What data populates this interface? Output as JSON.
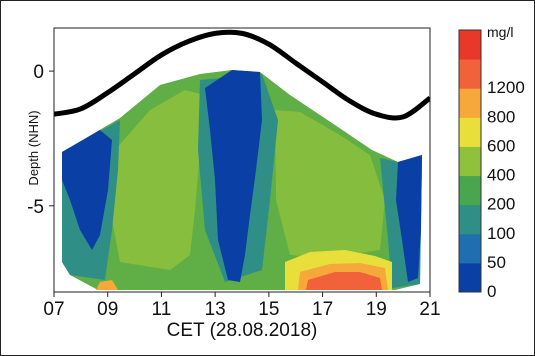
{
  "chart_data": {
    "type": "heatmap",
    "xlabel": "CET (28.08.2018)",
    "ylabel": "Depth (NHN)",
    "x_ticks": [
      "07",
      "09",
      "11",
      "13",
      "15",
      "17",
      "19",
      "21"
    ],
    "x_range": [
      7,
      21
    ],
    "y_ticks": [
      "0",
      "-5"
    ],
    "y_range": [
      -8.2,
      1.6
    ],
    "colorbar": {
      "unit": "mg/l",
      "levels": [
        "0",
        "50",
        "100",
        "200",
        "400",
        "600",
        "800",
        "1200"
      ],
      "colors": [
        "#0a3fa6",
        "#1f6fb0",
        "#2f8f86",
        "#4aa64e",
        "#8fc13c",
        "#e9df3a",
        "#f6a83a",
        "#f2623a",
        "#e8382a"
      ]
    },
    "water_level": {
      "x": [
        7,
        8,
        9,
        10,
        11,
        12,
        13,
        14,
        15,
        16,
        17,
        18,
        19,
        20,
        21
      ],
      "y": [
        -1.6,
        -1.4,
        -0.8,
        -0.1,
        0.6,
        1.1,
        1.4,
        1.4,
        1.0,
        0.3,
        -0.4,
        -1.1,
        -1.6,
        -1.7,
        -1.0
      ]
    },
    "concentration_bands": [
      {
        "x_start": 7.3,
        "x_end": 8.6,
        "level": "100"
      },
      {
        "x_start": 8.6,
        "x_end": 12.2,
        "level": "200"
      },
      {
        "x_start": 12.2,
        "x_end": 14.8,
        "level": "0"
      },
      {
        "x_start": 14.8,
        "x_end": 19.8,
        "level": "200"
      },
      {
        "x_start": 19.8,
        "x_end": 20.7,
        "level": "50"
      }
    ]
  }
}
